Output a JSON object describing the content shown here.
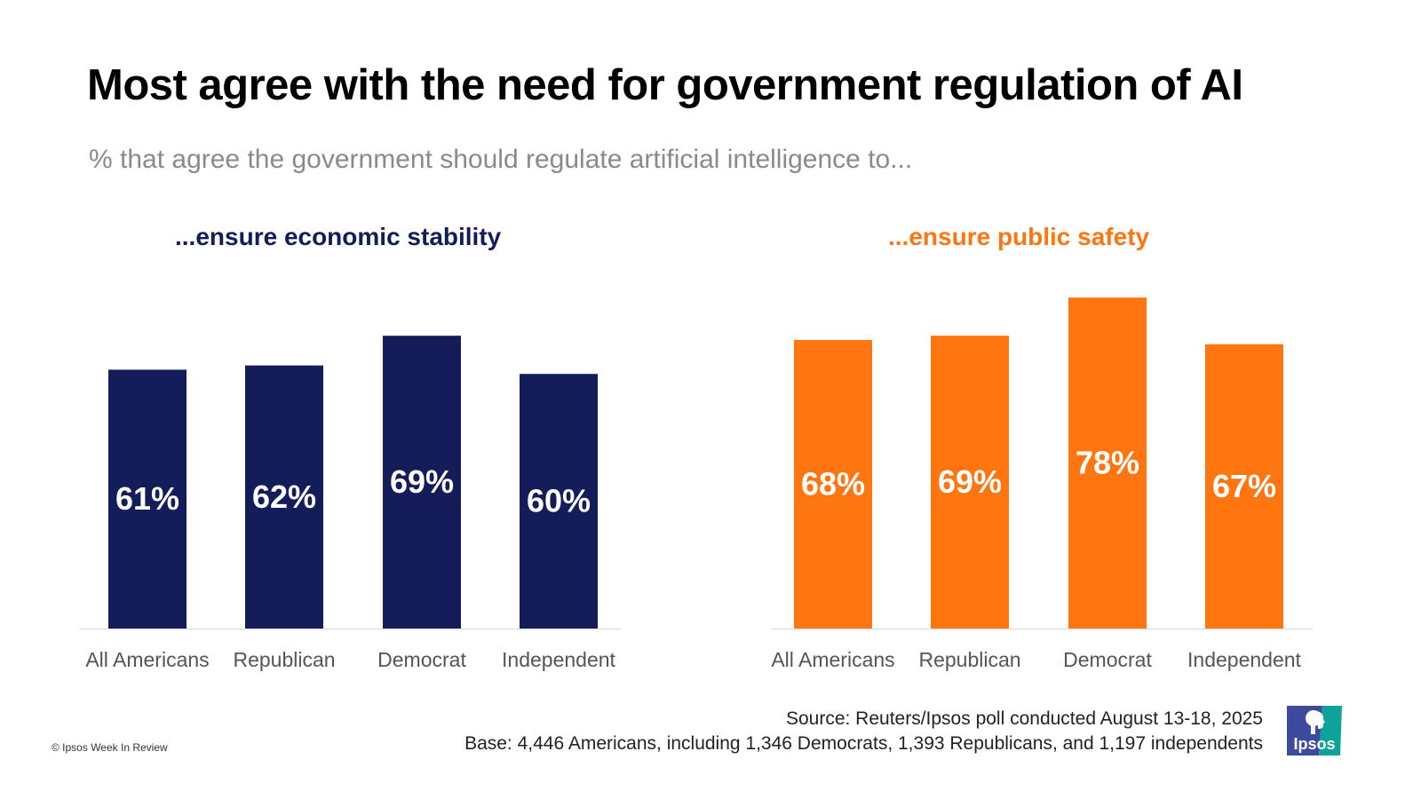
{
  "title": "Most agree with the need for government regulation of AI",
  "subtitle": "% that agree the government should regulate artificial intelligence to...",
  "chart_data": [
    {
      "type": "bar",
      "title": "...ensure economic stability",
      "color": "#141c59",
      "categories": [
        "All Americans",
        "Republican",
        "Democrat",
        "Independent"
      ],
      "values": [
        61,
        62,
        69,
        60
      ],
      "value_labels": [
        "61%",
        "62%",
        "69%",
        "60%"
      ],
      "xlabel": "",
      "ylabel": "",
      "ylim": [
        0,
        78
      ],
      "grid": false,
      "legend": "none"
    },
    {
      "type": "bar",
      "title": "...ensure public safety",
      "color": "#ff7611",
      "categories": [
        "All Americans",
        "Republican",
        "Democrat",
        "Independent"
      ],
      "values": [
        68,
        69,
        78,
        67
      ],
      "value_labels": [
        "68%",
        "69%",
        "78%",
        "67%"
      ],
      "xlabel": "",
      "ylabel": "",
      "ylim": [
        0,
        78
      ],
      "grid": false,
      "legend": "none"
    }
  ],
  "footer": {
    "source": "Source: Reuters/Ipsos poll conducted August 13-18, 2025",
    "base": "Base: 4,446 Americans, including 1,346 Democrats, 1,393 Republicans, and 1,197 independents",
    "copyright": "© Ipsos Week In Review",
    "logo_text": "Ipsos"
  },
  "colors": {
    "axis": "#e0e0e0",
    "category_label": "#555555",
    "value_label": "#ffffff",
    "logo_blue": "#3e4a9e",
    "logo_teal": "#0ea39a"
  }
}
